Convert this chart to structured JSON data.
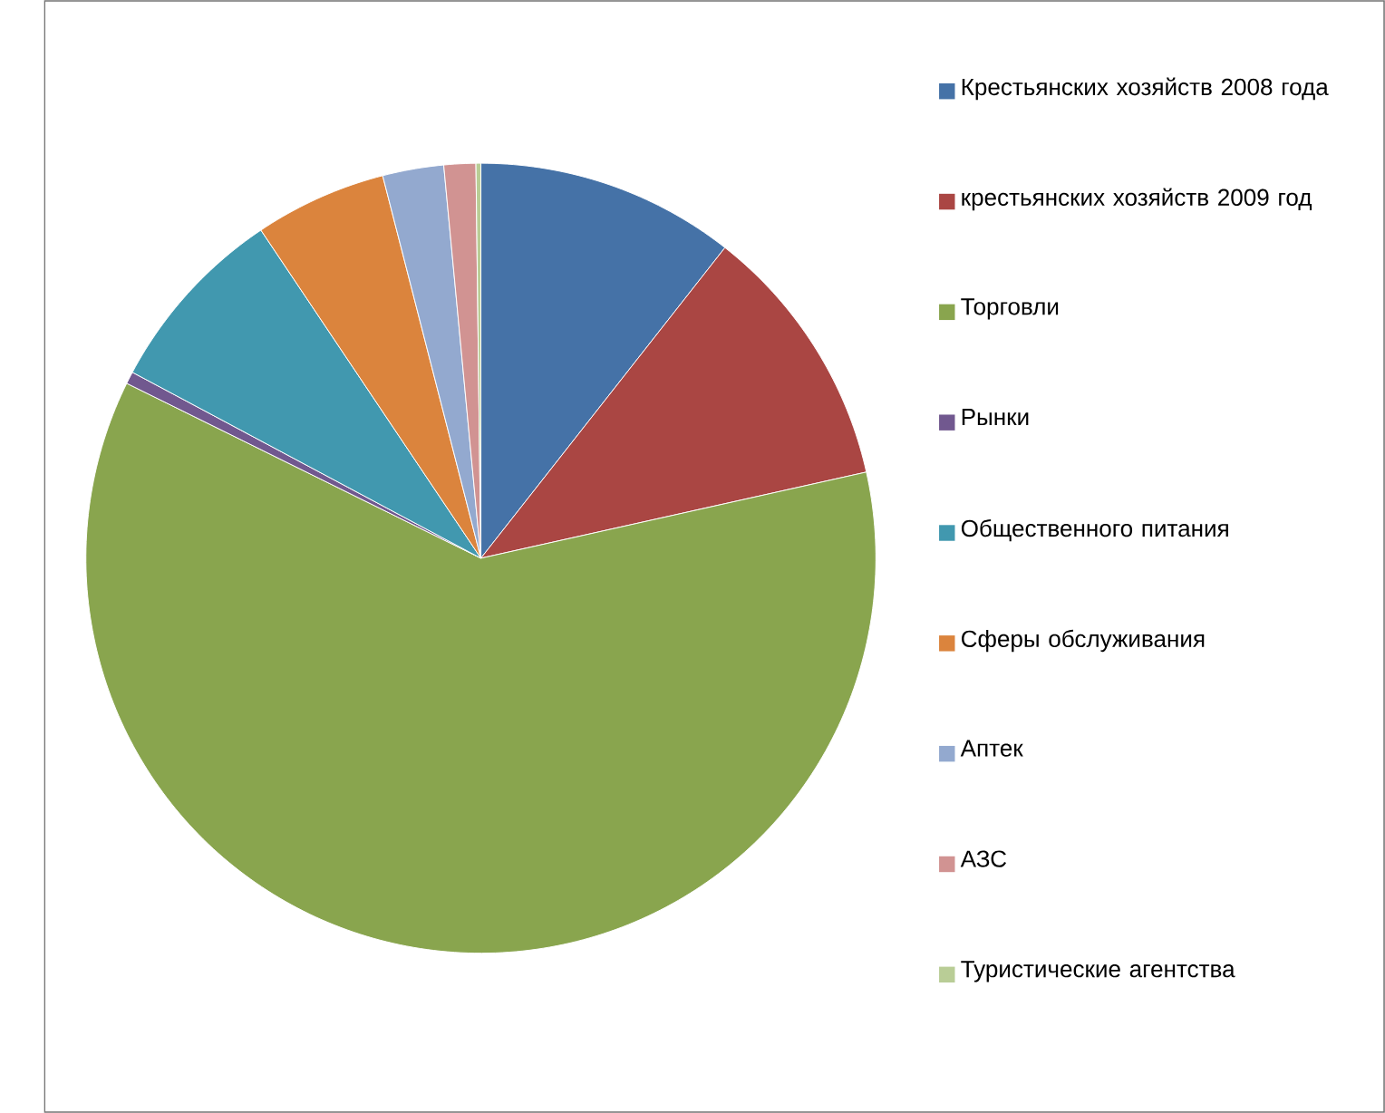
{
  "chart_data": {
    "type": "pie",
    "categories": [
      "Крестьянских хозяйств 2008 года",
      "крестьянских хозяйств 2009 год",
      "Торговли",
      "Рынки",
      "Общественного питания",
      "Сферы обслуживания",
      "Аптек",
      "АЗС",
      "Туристические агентства"
    ],
    "values": [
      10.6,
      10.9,
      60.8,
      0.5,
      7.8,
      5.4,
      2.5,
      1.3,
      0.2
    ],
    "colors": [
      "#4572a7",
      "#aa4643",
      "#89a54e",
      "#71588f",
      "#4198af",
      "#db843d",
      "#93a9cf",
      "#d19392",
      "#b9cd96"
    ],
    "legend": "right"
  }
}
